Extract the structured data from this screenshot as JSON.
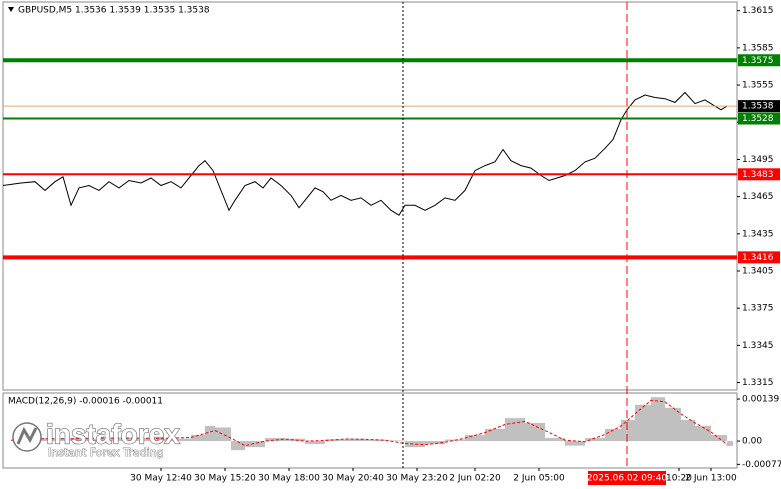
{
  "chart_data": [
    {
      "type": "line",
      "title": "GBPUSD,M5 1.3536 1.3539 1.3535 1.3538",
      "x": [
        0,
        9,
        16,
        21,
        26,
        30,
        34,
        38,
        43,
        48,
        53,
        58,
        63,
        69,
        74,
        79,
        84,
        89,
        94,
        98,
        101,
        105,
        109,
        113,
        116,
        121,
        126,
        130,
        134,
        139,
        144,
        148,
        151,
        156,
        160,
        164,
        169,
        174,
        179,
        184,
        189,
        194,
        198,
        201,
        206,
        211,
        216,
        221,
        226,
        231,
        236,
        241,
        246,
        250,
        254,
        259,
        264,
        269,
        273,
        277,
        281,
        286,
        291,
        296,
        301,
        305,
        309,
        312,
        316,
        321,
        326,
        331,
        336,
        341,
        346,
        351,
        355,
        359,
        362
      ],
      "series": [
        {
          "color": "#000000",
          "values": [
            1.3474,
            1.3476,
            1.3477,
            1.347,
            1.3477,
            1.3481,
            1.3458,
            1.3472,
            1.3474,
            1.347,
            1.3477,
            1.3472,
            1.3478,
            1.3476,
            1.348,
            1.3474,
            1.3477,
            1.3472,
            1.3482,
            1.349,
            1.3494,
            1.3486,
            1.347,
            1.3454,
            1.3462,
            1.3474,
            1.3477,
            1.3472,
            1.348,
            1.3474,
            1.3466,
            1.3456,
            1.3462,
            1.3472,
            1.3469,
            1.3462,
            1.3466,
            1.3462,
            1.3464,
            1.3458,
            1.3462,
            1.3454,
            1.345,
            1.3458,
            1.3458,
            1.3454,
            1.3458,
            1.3464,
            1.3462,
            1.347,
            1.3486,
            1.349,
            1.3493,
            1.3503,
            1.3494,
            1.349,
            1.3488,
            1.3482,
            1.3478,
            1.348,
            1.3482,
            1.3486,
            1.3493,
            1.3496,
            1.3504,
            1.3511,
            1.3527,
            1.3535,
            1.3543,
            1.3547,
            1.3545,
            1.3544,
            1.3541,
            1.3549,
            1.354,
            1.3543,
            1.3539,
            1.3535,
            1.3538
          ]
        }
      ],
      "xlim": [
        0,
        367
      ],
      "ylim": [
        1.3309,
        1.3622
      ],
      "yticks": [
        1.3615,
        1.3585,
        1.3555,
        1.3525,
        1.3495,
        1.3465,
        1.3435,
        1.3405,
        1.3375,
        1.3345,
        1.3315
      ],
      "xticks": [
        {
          "value": 79,
          "label": "30 May 12:40"
        },
        {
          "value": 111,
          "label": "30 May 15:20"
        },
        {
          "value": 143,
          "label": "30 May 18:00"
        },
        {
          "value": 175,
          "label": "30 May 20:40"
        },
        {
          "value": 207,
          "label": "30 May 23:20"
        },
        {
          "value": 236,
          "label": "2 Jun 02:20"
        },
        {
          "value": 268,
          "label": "2 Jun 05:00"
        },
        {
          "value": 338,
          "label": "10:20"
        },
        {
          "value": 354,
          "label": "2 Jun 13:00"
        }
      ],
      "levels": [
        {
          "value": 1.3575,
          "color": "#008000",
          "line": "thick"
        },
        {
          "value": 1.3528,
          "color": "#008000",
          "line": "thin"
        },
        {
          "value": 1.3483,
          "color": "#ff0000",
          "line": "thin"
        },
        {
          "value": 1.3416,
          "color": "#ff0000",
          "line": "thick"
        },
        {
          "value": 1.3538,
          "color": "#000000",
          "line": "current"
        }
      ],
      "vlines": [
        {
          "x": 200,
          "color": "#000000"
        },
        {
          "x": 312,
          "color": "#ff0000",
          "label": "2025.06.02 09:40"
        }
      ]
    },
    {
      "type": "macd",
      "title": "MACD(12,26,9) -0.00016 -0.00011",
      "x": [
        4,
        19,
        34,
        49,
        64,
        79,
        94,
        101,
        106,
        114,
        121,
        131,
        141,
        151,
        161,
        171,
        181,
        191,
        201,
        211,
        221,
        231,
        241,
        251,
        261,
        271,
        281,
        291,
        301,
        309,
        316,
        324,
        331,
        339,
        346,
        354,
        362
      ],
      "series": [
        {
          "type": "bar",
          "color": "#c0c0c0",
          "values": [
            5e-05,
            0.0001,
            8e-05,
            0.00012,
            0.0001,
            8e-05,
            0.0002,
            0.0005,
            0.00045,
            -0.0003,
            -0.0002,
            0.0001,
            8e-05,
            -0.0001,
            6e-05,
            8e-05,
            5e-05,
            2e-05,
            -0.0002,
            -0.0001,
            5e-05,
            0.0002,
            0.0004,
            0.00076,
            0.0006,
            0.0001,
            -0.00015,
            0.0001,
            0.0004,
            0.0007,
            0.0012,
            0.00145,
            0.0011,
            0.0007,
            0.0005,
            0.0002,
            -0.00016
          ]
        },
        {
          "type": "line",
          "color": "#ff0000",
          "values": [
            3e-05,
            8e-05,
            8e-05,
            0.0001,
            0.0001,
            9e-05,
            0.00012,
            0.00025,
            0.00035,
            0.0001,
            -0.00015,
            0,
            7e-05,
            0,
            2e-05,
            7e-05,
            6e-05,
            3e-05,
            -8e-05,
            -0.00012,
            -4e-05,
            0.0001,
            0.00028,
            0.00055,
            0.00065,
            0.00035,
            3e-05,
            -2e-05,
            0.00022,
            0.0005,
            0.0009,
            0.00135,
            0.0013,
            0.0009,
            0.0006,
            0.0003,
            -0.00011
          ]
        }
      ],
      "xlim": [
        0,
        367
      ],
      "ylim": [
        -0.00089,
        0.00159
      ],
      "yticks": [
        0.00139,
        {
          "value": 0,
          "label": "0.00"
        },
        -0.00077
      ]
    }
  ],
  "watermark": {
    "brand": "instaforex",
    "tagline": "Instant Forex Trading"
  }
}
